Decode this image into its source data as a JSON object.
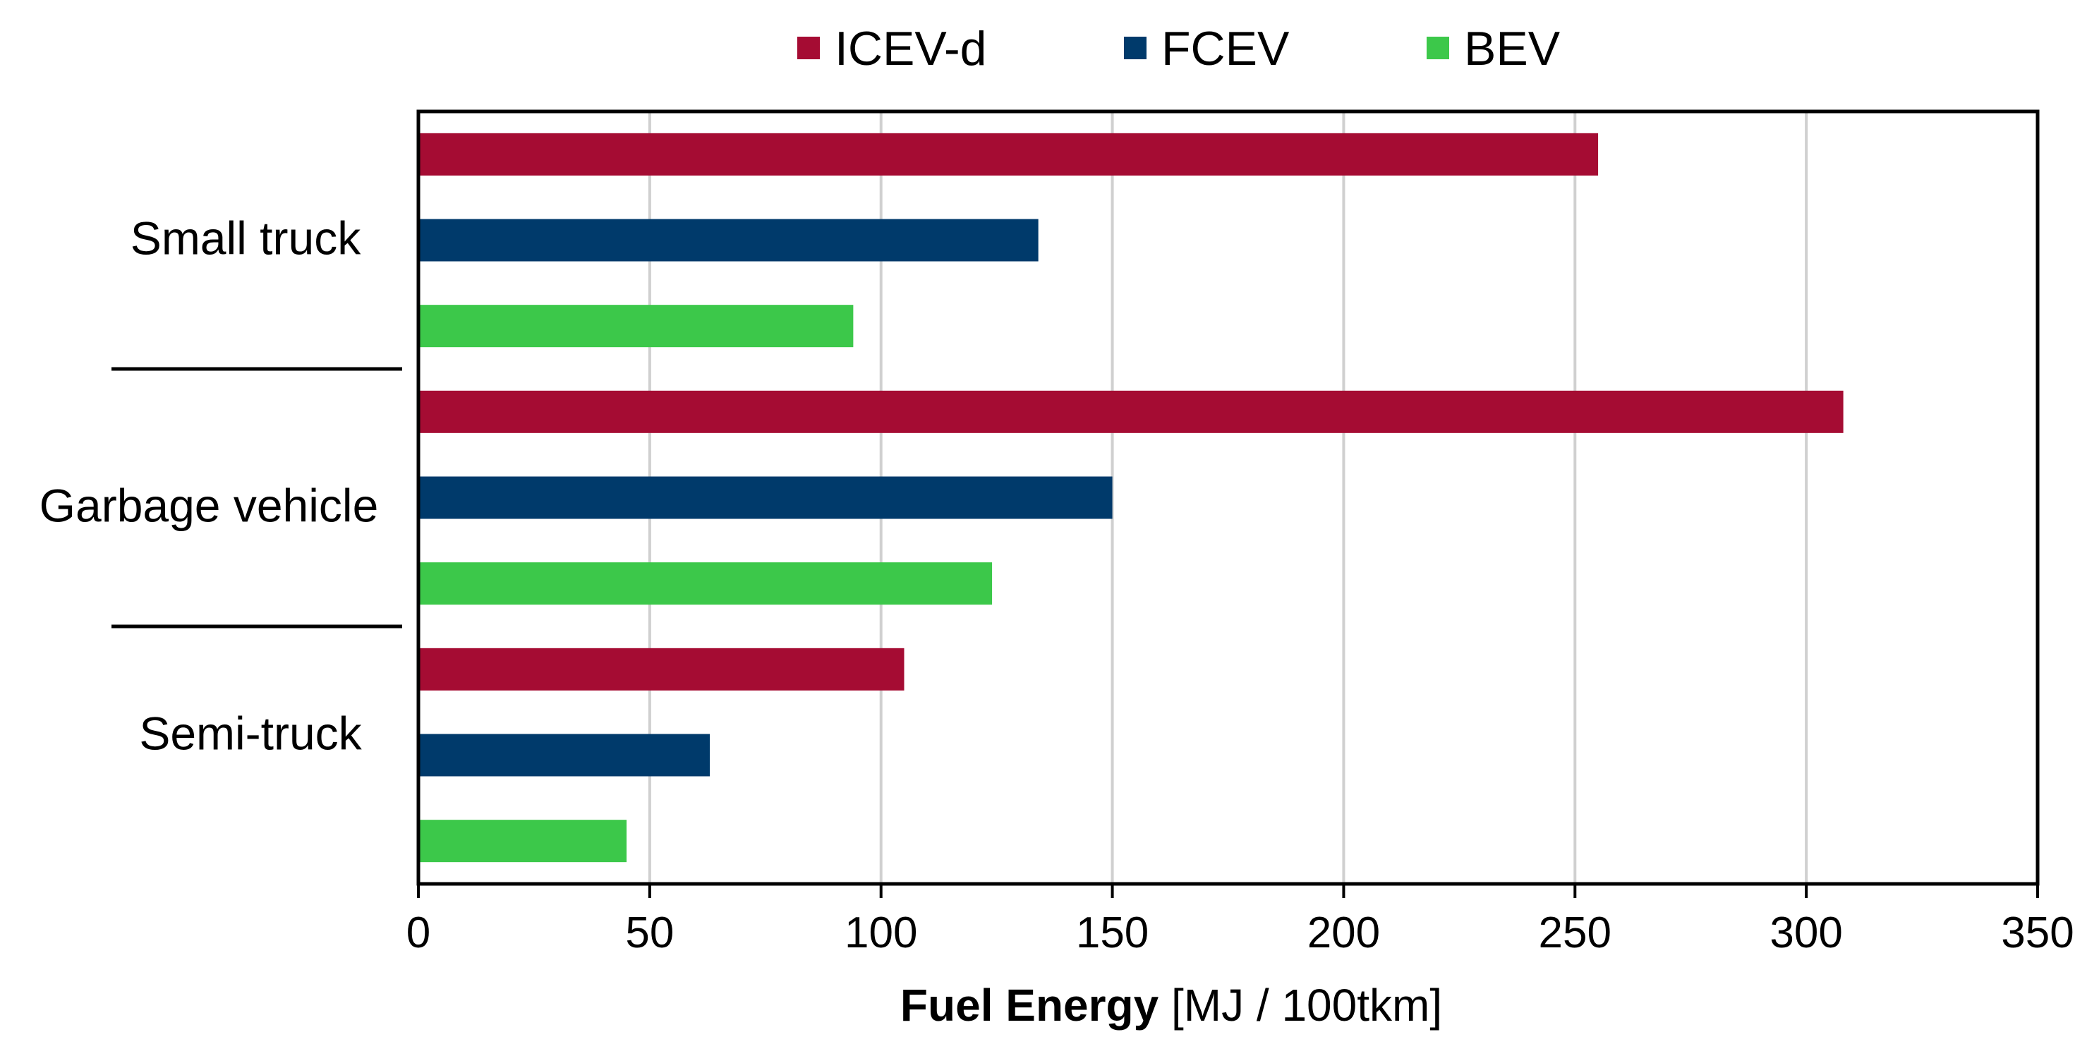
{
  "chart_data": {
    "type": "bar",
    "orientation": "horizontal",
    "categories": [
      "Small truck",
      "Garbage vehicle",
      "Semi-truck"
    ],
    "series": [
      {
        "name": "ICEV-d",
        "color": "#A50C33",
        "values": [
          255,
          308,
          105
        ]
      },
      {
        "name": "FCEV",
        "color": "#003A6B",
        "values": [
          134,
          150,
          63
        ]
      },
      {
        "name": "BEV",
        "color": "#3CC84A",
        "values": [
          94,
          124,
          45
        ]
      }
    ],
    "xlim": [
      0,
      350
    ],
    "xticks": [
      0,
      50,
      100,
      150,
      200,
      250,
      300,
      350
    ],
    "xlabel_bold": "Fuel Energy",
    "xlabel_unit": "[MJ / 100tkm]",
    "grid": "vertical",
    "legend_position": "top-center"
  }
}
